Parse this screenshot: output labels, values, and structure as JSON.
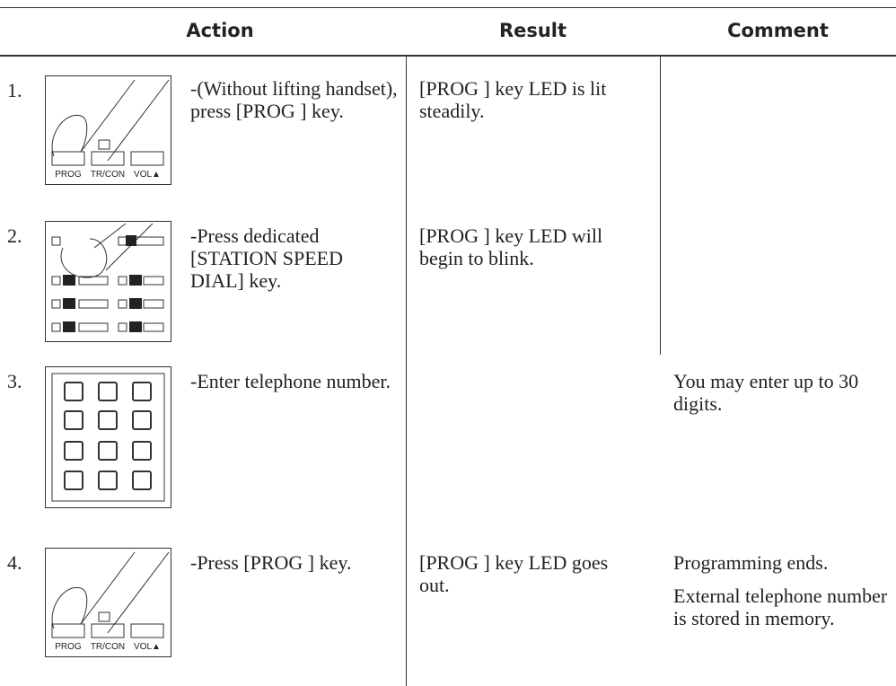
{
  "table": {
    "header": [
      "Action",
      "Result",
      "Comment"
    ],
    "rows": [
      {
        "step": "1.",
        "action": "-(Without lifting handset), press [PROG ] key.",
        "result": "[PROG ] key LED is lit steadily.",
        "keys": [
          "PROG",
          "TR/CON",
          "VOL▲"
        ]
      },
      {
        "step": "2.",
        "action": "-Press dedicated [STATION SPEED DIAL] key.",
        "result": "[PROG ] key LED will begin to blink."
      },
      {
        "step": "3.",
        "action": "-Enter telephone number.",
        "comment": [
          "You may enter up to 30 digits."
        ]
      },
      {
        "step": "4.",
        "action": "-Press [PROG ] key.",
        "result": "[PROG ] key LED goes out.",
        "comment": [
          "Programming ends.",
          "External telephone number is stored in memory."
        ],
        "keys": [
          "PROG",
          "TR/CON",
          "VOL▲"
        ]
      }
    ]
  }
}
